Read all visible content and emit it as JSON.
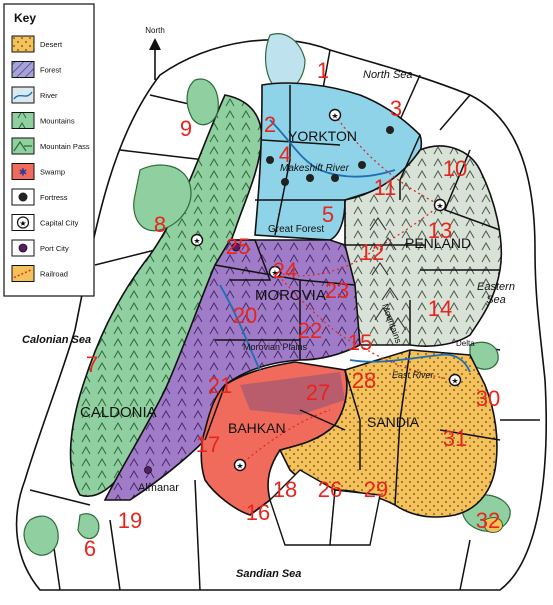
{
  "key": {
    "title": "Key",
    "items": [
      {
        "label": "Desert",
        "color": "#f5c15a",
        "pattern": "dots"
      },
      {
        "label": "Forest",
        "color": "#8a86c8",
        "pattern": "hatch"
      },
      {
        "label": "River",
        "color": "#dbe8ef",
        "pattern": "river"
      },
      {
        "label": "Mountains",
        "color": "#8fd19e",
        "pattern": "mountains"
      },
      {
        "label": "Mountain Pass",
        "color": "#8fd19e",
        "pattern": "pass"
      },
      {
        "label": "Swamp",
        "color": "#f06b5b",
        "pattern": "swamp"
      },
      {
        "label": "Fortress",
        "color": "#ffffff",
        "pattern": "fortress-icon"
      },
      {
        "label": "Capital City",
        "color": "#ffffff",
        "pattern": "capital-icon"
      },
      {
        "label": "Port City",
        "color": "#ffffff",
        "pattern": "port-icon"
      },
      {
        "label": "Railroad",
        "color": "#f5c15a",
        "pattern": "rail"
      }
    ]
  },
  "compass": {
    "label": "North"
  },
  "seas": {
    "north": "North Sea",
    "eastern_1": "Eastern",
    "eastern_2": "Sea",
    "calonian": "Calonian Sea",
    "sandian": "Sandian Sea"
  },
  "countries": {
    "yorkton": "YORKTON",
    "penland": "PENLAND",
    "morovia": "MOROVIA",
    "caldonia": "CALDONIA",
    "bahkan": "BAHKAN",
    "sandia": "SANDIA"
  },
  "features": {
    "makeshift_river": "Makeshift River",
    "great_forest": "Great Forest",
    "moravian_plains": "Morovian Plains",
    "east_river": "East River",
    "delta": "Delta",
    "almanar": "Almanar",
    "mountains": "Mountains"
  },
  "territories": [
    "1",
    "2",
    "3",
    "4",
    "5",
    "6",
    "7",
    "8",
    "9",
    "10",
    "11",
    "12",
    "13",
    "14",
    "15",
    "16",
    "17",
    "18",
    "19",
    "20",
    "21",
    "22",
    "23",
    "24",
    "25",
    "26",
    "27",
    "28",
    "29",
    "30",
    "31",
    "32"
  ],
  "colors": {
    "territory_number": "#e8241d",
    "yorkton": "#8fd3e8",
    "penland": "#d8e2d6",
    "morovia": "#a07cc8",
    "caldonia": "#8fcfa0",
    "bahkan": "#f06b5b",
    "sandia": "#f5c15a",
    "desert_dot": "#5a4a1a",
    "border": "#111111"
  }
}
